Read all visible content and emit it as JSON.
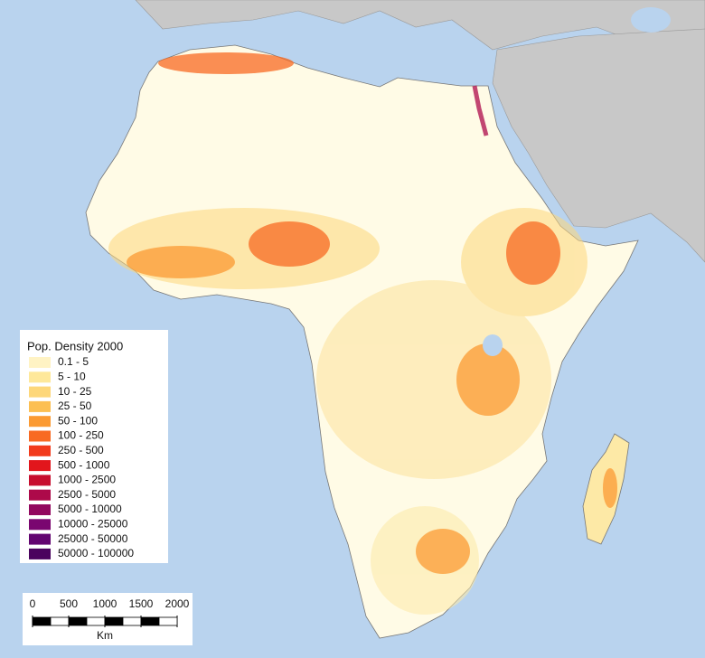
{
  "legend": {
    "title": "Pop. Density 2000",
    "items": [
      {
        "label": "0.1 - 5",
        "color": "#fff3c4"
      },
      {
        "label": "5 - 10",
        "color": "#fee89a"
      },
      {
        "label": "10 - 25",
        "color": "#fdd77a"
      },
      {
        "label": "25 - 50",
        "color": "#fcbf52"
      },
      {
        "label": "50 - 100",
        "color": "#fb9a33"
      },
      {
        "label": "100 - 250",
        "color": "#f86a22"
      },
      {
        "label": "250 - 500",
        "color": "#f23b1c"
      },
      {
        "label": "500 - 1000",
        "color": "#e2161c"
      },
      {
        "label": "1000 - 2500",
        "color": "#c70e2f"
      },
      {
        "label": "2500 - 5000",
        "color": "#ad0a4a"
      },
      {
        "label": "5000 - 10000",
        "color": "#92085f"
      },
      {
        "label": "10000 - 25000",
        "color": "#7a0670"
      },
      {
        "label": "25000 - 50000",
        "color": "#620470"
      },
      {
        "label": "50000 - 100000",
        "color": "#4a035e"
      }
    ]
  },
  "scale_bar": {
    "ticks": [
      0,
      500,
      1000,
      1500,
      2000
    ],
    "unit": "Km"
  }
}
